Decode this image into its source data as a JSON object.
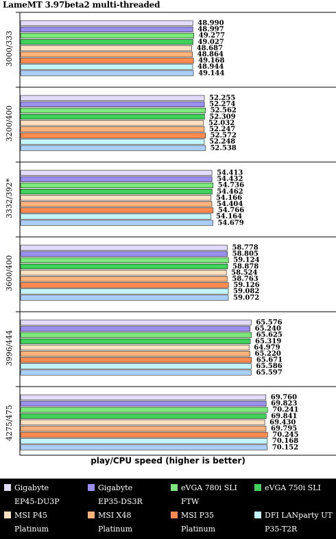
{
  "chart_data": {
    "type": "bar",
    "orientation": "horizontal",
    "title": "LameMT 3.97beta2 multi-threaded",
    "xlabel": "play/CPU speed (higher is better)",
    "grid": false,
    "legend_position": "bottom",
    "groups": [
      "3000/333",
      "3200/400",
      "3332/392*",
      "3600/400",
      "3996/444",
      "4275/475"
    ],
    "series": [
      {
        "name": "Gigabyte EP45-DU3P",
        "color": "#e2dbfb",
        "values": [
          48.99,
          52.255,
          54.413,
          58.778,
          65.576,
          69.76
        ]
      },
      {
        "name": "Gigabyte EP35-DS3R",
        "color": "#9a8fee",
        "values": [
          48.997,
          52.274,
          54.432,
          58.805,
          65.24,
          69.823
        ]
      },
      {
        "name": "eVGA 780i SLI FTW",
        "color": "#7ce87c",
        "values": [
          49.277,
          52.562,
          54.736,
          59.124,
          65.625,
          70.241
        ]
      },
      {
        "name": "eVGA 750i SLI",
        "color": "#3fd15a",
        "values": [
          49.027,
          52.309,
          54.462,
          58.878,
          65.319,
          69.841
        ]
      },
      {
        "name": "MSI P45 Platinum",
        "color": "#fde0c0",
        "values": [
          48.687,
          52.032,
          54.166,
          58.524,
          64.979,
          69.43
        ]
      },
      {
        "name": "MSI X48 Platinum",
        "color": "#ffb27a",
        "values": [
          48.864,
          52.247,
          54.404,
          58.763,
          65.22,
          69.795
        ]
      },
      {
        "name": "MSI P35 Platinum",
        "color": "#ff8a4f",
        "values": [
          49.168,
          52.572,
          54.766,
          59.126,
          65.671,
          70.245
        ]
      },
      {
        "name": "DFI LANparty UT P35-T2R",
        "color": "#c2f5fb",
        "values": [
          48.944,
          52.248,
          54.164,
          59.082,
          65.586,
          70.168
        ]
      },
      {
        "name": "",
        "color": "#a9cff8",
        "values": [
          49.144,
          52.538,
          54.679,
          59.072,
          65.597,
          70.152
        ]
      }
    ],
    "value_labels": [
      [
        "48.990",
        "48.997",
        "49.277",
        "49.027",
        "48.687",
        "48.864",
        "49.168",
        "48.944",
        "49.144"
      ],
      [
        "52.255",
        "52.274",
        "52.562",
        "52.309",
        "52.032",
        "52.247",
        "52.572",
        "52.248",
        "52.538"
      ],
      [
        "54.413",
        "54.432",
        "54.736",
        "54.462",
        "54.166",
        "54.404",
        "54.766",
        "54.164",
        "54.679"
      ],
      [
        "58.778",
        "58.805",
        "59.124",
        "58.878",
        "58.524",
        "58.763",
        "59.126",
        "59.082",
        "59.072"
      ],
      [
        "65.576",
        "65.240",
        "65.625",
        "65.319",
        "64.979",
        "65.220",
        "65.671",
        "65.586",
        "65.597"
      ],
      [
        "69.760",
        "69.823",
        "70.241",
        "69.841",
        "69.430",
        "69.795",
        "70.245",
        "70.168",
        "70.152"
      ]
    ]
  },
  "legend": [
    {
      "label": "Gigabyte\nEP45-DU3P",
      "color": "#e2dbfb"
    },
    {
      "label": "Gigabyte\nEP35-DS3R",
      "color": "#9a8fee"
    },
    {
      "label": "eVGA 780i SLI\nFTW",
      "color": "#7ce87c"
    },
    {
      "label": "eVGA 750i SLI",
      "color": "#3fd15a"
    },
    {
      "label": "MSI P45\nPlatinum",
      "color": "#fde0c0"
    },
    {
      "label": "MSI X48\nPlatinum",
      "color": "#ffb27a"
    },
    {
      "label": "MSI P35\nPlatinum",
      "color": "#ff8a4f"
    },
    {
      "label": "DFI LANparty UT\nP35-T2R",
      "color": "#c2f5fb"
    }
  ]
}
